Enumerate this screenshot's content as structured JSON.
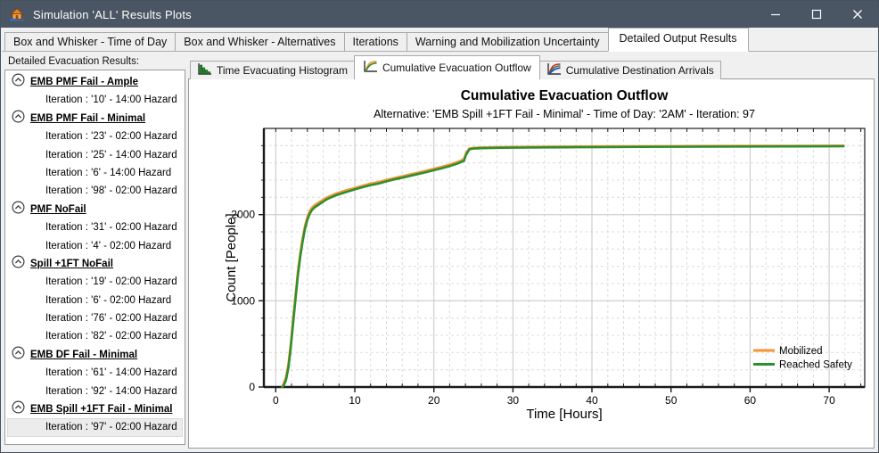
{
  "window": {
    "title": "Simulation 'ALL' Results Plots",
    "app_icon": "house-icon",
    "buttons": [
      "minimize",
      "maximize",
      "close"
    ]
  },
  "main_tabs": {
    "items": [
      {
        "label": "Box and Whisker - Time of Day",
        "selected": false
      },
      {
        "label": "Box and Whisker - Alternatives",
        "selected": false
      },
      {
        "label": "Iterations",
        "selected": false
      },
      {
        "label": "Warning and Mobilization Uncertainty",
        "selected": false
      },
      {
        "label": "Detailed Output Results",
        "selected": true
      }
    ]
  },
  "sidebar": {
    "label": "Detailed Evacuation Results:",
    "group_icon": "circle-chevron-up-icon",
    "groups": [
      {
        "name": "EMB PMF Fail - Ample",
        "iterations": [
          {
            "label": "Iteration : '10' - 14:00 Hazard",
            "selected": false
          }
        ]
      },
      {
        "name": "EMB PMF Fail - Minimal",
        "iterations": [
          {
            "label": "Iteration : '23' - 02:00 Hazard",
            "selected": false
          },
          {
            "label": "Iteration : '25' - 14:00 Hazard",
            "selected": false
          },
          {
            "label": "Iteration : '6' - 14:00 Hazard",
            "selected": false
          },
          {
            "label": "Iteration : '98' - 02:00 Hazard",
            "selected": false
          }
        ]
      },
      {
        "name": "PMF NoFail",
        "iterations": [
          {
            "label": "Iteration : '31' - 02:00 Hazard",
            "selected": false
          },
          {
            "label": "Iteration : '4' - 02:00 Hazard",
            "selected": false
          }
        ]
      },
      {
        "name": "Spill +1FT NoFail",
        "iterations": [
          {
            "label": "Iteration : '19' - 02:00 Hazard",
            "selected": false
          },
          {
            "label": "Iteration : '6' - 02:00 Hazard",
            "selected": false
          },
          {
            "label": "Iteration : '76' - 02:00 Hazard",
            "selected": false
          },
          {
            "label": "Iteration : '82' - 02:00 Hazard",
            "selected": false
          }
        ]
      },
      {
        "name": "EMB DF Fail - Minimal",
        "iterations": [
          {
            "label": "Iteration : '61' - 14:00 Hazard",
            "selected": false
          },
          {
            "label": "Iteration : '92' - 14:00 Hazard",
            "selected": false
          }
        ]
      },
      {
        "name": "EMB Spill +1FT Fail - Minimal",
        "iterations": [
          {
            "label": "Iteration : '97' - 02:00 Hazard",
            "selected": true
          }
        ]
      }
    ]
  },
  "sub_tabs": {
    "items": [
      {
        "label": "Time Evacuating Histogram",
        "icon": "histogram-icon",
        "selected": false
      },
      {
        "label": "Cumulative Evacuation Outflow",
        "icon": "cumulative-curve-icon",
        "selected": true
      },
      {
        "label": "Cumulative Destination Arrivals",
        "icon": "multi-curve-icon",
        "selected": false
      }
    ]
  },
  "chart_data": {
    "type": "line",
    "title": "Cumulative Evacuation Outflow",
    "subtitle": "Alternative: 'EMB Spill +1FT Fail - Minimal' - Time of Day: '2AM' - Iteration: 97",
    "xlabel": "Time [Hours]",
    "ylabel": "Count [People]",
    "xlim": [
      -1.5,
      74.5
    ],
    "ylim": [
      0,
      3000
    ],
    "x_major_ticks": [
      0,
      10,
      20,
      30,
      40,
      50,
      60,
      70
    ],
    "y_major_ticks": [
      0,
      1000,
      2000
    ],
    "x_minor_step": 2,
    "y_minor_step": 200,
    "grid": true,
    "legend_position": "bottom-right",
    "x": [
      0.8,
      1.0,
      1.3,
      1.6,
      1.9,
      2.2,
      2.5,
      2.8,
      3.1,
      3.4,
      3.7,
      4.0,
      4.3,
      4.6,
      5.0,
      5.5,
      6.0,
      6.5,
      7.0,
      7.5,
      8.0,
      8.5,
      9.0,
      9.5,
      10,
      11,
      12,
      13,
      14,
      15,
      16,
      17,
      18,
      19,
      20,
      21,
      22,
      23,
      23.5,
      23.8,
      24.1,
      24.5,
      25,
      26,
      28,
      30,
      34,
      38,
      42,
      46,
      50,
      55,
      60,
      65,
      70,
      71.8
    ],
    "series": [
      {
        "name": "Mobilized",
        "color": "#F79433",
        "values": [
          0,
          40,
          115,
          265,
          505,
          790,
          1070,
          1335,
          1552,
          1728,
          1870,
          1972,
          2040,
          2082,
          2115,
          2145,
          2172,
          2200,
          2220,
          2240,
          2255,
          2270,
          2285,
          2297,
          2310,
          2336,
          2360,
          2378,
          2402,
          2425,
          2445,
          2467,
          2487,
          2509,
          2532,
          2555,
          2580,
          2610,
          2630,
          2645,
          2718,
          2768,
          2775,
          2779,
          2782,
          2785,
          2788,
          2790,
          2792,
          2793,
          2794,
          2796,
          2797,
          2798,
          2799,
          2800
        ]
      },
      {
        "name": "Reached Safety",
        "color": "#2E8F2E",
        "values": [
          0,
          15,
          80,
          220,
          460,
          740,
          1020,
          1290,
          1510,
          1690,
          1835,
          1940,
          2010,
          2055,
          2090,
          2120,
          2150,
          2180,
          2200,
          2220,
          2235,
          2250,
          2265,
          2278,
          2292,
          2318,
          2342,
          2360,
          2385,
          2408,
          2428,
          2450,
          2470,
          2492,
          2515,
          2538,
          2562,
          2592,
          2612,
          2625,
          2700,
          2758,
          2766,
          2770,
          2774,
          2777,
          2780,
          2782,
          2784,
          2786,
          2787,
          2789,
          2790,
          2791,
          2792,
          2793
        ]
      }
    ]
  }
}
